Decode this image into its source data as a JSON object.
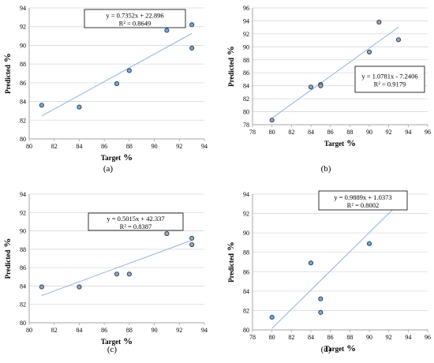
{
  "colors": {
    "point_fill_a": "#6fa8dc",
    "point_fill_b": "#9aa4b0",
    "point_fill_c": "#9aa4b0",
    "point_fill_d": "#6fa8dc",
    "point_stroke": "#1f3b5c",
    "trendline": "#8eb4e3",
    "grid": "#d9d9d9",
    "axis": "#a6a6a6"
  },
  "chart_data": [
    {
      "panel_label": "(a)",
      "type": "scatter",
      "xlabel": "Target",
      "xlabel_unit": "%",
      "ylabel": "Predicted",
      "ylabel_unit": "%",
      "xlim": [
        80,
        94
      ],
      "ylim": [
        80,
        94
      ],
      "xticks": [
        "80",
        "82",
        "84",
        "86",
        "88",
        "90",
        "92",
        "94"
      ],
      "yticks": [
        "80",
        "82",
        "84",
        "86",
        "88",
        "90",
        "92",
        "94"
      ],
      "grid": "horizontal",
      "points": [
        {
          "x": 81,
          "y": 83.6
        },
        {
          "x": 84,
          "y": 83.4
        },
        {
          "x": 87,
          "y": 85.9
        },
        {
          "x": 88,
          "y": 87.3
        },
        {
          "x": 91,
          "y": 91.6
        },
        {
          "x": 93,
          "y": 92.2
        },
        {
          "x": 93,
          "y": 89.7
        }
      ],
      "trendline": {
        "slope": 0.7352,
        "intercept": 22.896,
        "x_range": [
          81,
          93
        ]
      },
      "equation": "y = 0.7352x + 22.896",
      "r2": "R² = 0.8649",
      "equation_box_position": "top-center"
    },
    {
      "panel_label": "(b)",
      "type": "scatter",
      "xlabel": "Target",
      "xlabel_unit": "%",
      "ylabel": "Predicted",
      "ylabel_unit": "%",
      "xlim": [
        78,
        96
      ],
      "ylim": [
        78,
        96
      ],
      "xticks": [
        "78",
        "80",
        "82",
        "84",
        "86",
        "88",
        "90",
        "92",
        "94",
        "96"
      ],
      "yticks": [
        "78",
        "80",
        "82",
        "84",
        "86",
        "88",
        "90",
        "92",
        "94",
        "96"
      ],
      "grid": "horizontal",
      "points": [
        {
          "x": 80,
          "y": 78.7
        },
        {
          "x": 84,
          "y": 83.8
        },
        {
          "x": 85,
          "y": 84.2
        },
        {
          "x": 85,
          "y": 84.0
        },
        {
          "x": 90,
          "y": 89.2
        },
        {
          "x": 91,
          "y": 93.8
        },
        {
          "x": 93,
          "y": 91.1
        }
      ],
      "trendline": {
        "slope": 1.0781,
        "intercept": -7.2406,
        "x_range": [
          80,
          93
        ]
      },
      "equation": "y = 1.0781x - 7.2406",
      "r2": "R² = 0.9179",
      "equation_box_position": "center-right"
    },
    {
      "panel_label": "(c)",
      "type": "scatter",
      "xlabel": "Target",
      "xlabel_unit": "%",
      "ylabel": "Predicted",
      "ylabel_unit": "%",
      "xlim": [
        80,
        94
      ],
      "ylim": [
        80,
        94
      ],
      "xticks": [
        "80",
        "82",
        "84",
        "86",
        "88",
        "90",
        "92",
        "94"
      ],
      "yticks": [
        "80",
        "82",
        "84",
        "86",
        "88",
        "90",
        "92",
        "94"
      ],
      "grid": "horizontal",
      "points": [
        {
          "x": 81,
          "y": 83.9
        },
        {
          "x": 84,
          "y": 83.9
        },
        {
          "x": 87,
          "y": 85.3
        },
        {
          "x": 88,
          "y": 85.3
        },
        {
          "x": 91,
          "y": 89.7
        },
        {
          "x": 93,
          "y": 89.2
        },
        {
          "x": 93,
          "y": 88.5
        }
      ],
      "trendline": {
        "slope": 0.5015,
        "intercept": 42.337,
        "x_range": [
          81,
          93
        ]
      },
      "equation": "y = 0.5015x + 42.337",
      "r2": "R² = 0.8387",
      "equation_box_position": "center"
    },
    {
      "panel_label": "(d)",
      "type": "scatter",
      "xlabel": "Target",
      "xlabel_unit": "%",
      "ylabel": "Predicted",
      "ylabel_unit": "%",
      "xlim": [
        78,
        96
      ],
      "ylim": [
        80,
        94
      ],
      "xticks": [
        "78",
        "80",
        "82",
        "84",
        "86",
        "88",
        "90",
        "92",
        "94",
        "96"
      ],
      "yticks": [
        "80",
        "82",
        "84",
        "86",
        "88",
        "90",
        "92",
        "94"
      ],
      "grid": "horizontal",
      "points": [
        {
          "x": 80,
          "y": 81.3
        },
        {
          "x": 84,
          "y": 86.9
        },
        {
          "x": 85,
          "y": 83.2
        },
        {
          "x": 85,
          "y": 81.8
        },
        {
          "x": 90,
          "y": 88.9
        },
        {
          "x": 91,
          "y": 93.4
        },
        {
          "x": 93,
          "y": 92.9
        }
      ],
      "trendline": {
        "slope": 0.9889,
        "intercept": 1.0373,
        "x_range": [
          80,
          93
        ]
      },
      "equation": "y = 0.9889x + 1.0373",
      "r2": "R² = 0.8002",
      "equation_box_position": "top-center"
    }
  ]
}
